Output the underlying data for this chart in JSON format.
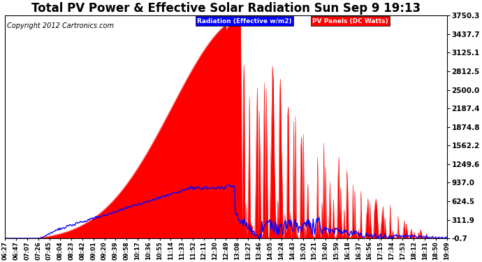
{
  "title": "Total PV Power & Effective Solar Radiation Sun Sep 9 19:13",
  "copyright": "Copyright 2012 Cartronics.com",
  "legend_radiation": "Radiation (Effective w/m2)",
  "legend_pv": "PV Panels (DC Watts)",
  "yticks": [
    3750.3,
    3437.7,
    3125.1,
    2812.5,
    2500.0,
    2187.4,
    1874.8,
    1562.2,
    1249.6,
    937.0,
    624.5,
    311.9,
    -0.7
  ],
  "ylim": [
    -0.7,
    3750.3
  ],
  "bg_color": "#ffffff",
  "plot_bg_color": "#ffffff",
  "red_color": "#ff0000",
  "blue_color": "#0000ff",
  "title_fontsize": 12,
  "copyright_fontsize": 7,
  "xtick_fontsize": 6,
  "ytick_fontsize": 7.5,
  "time_labels": [
    "06:27",
    "06:47",
    "07:07",
    "07:26",
    "07:45",
    "08:04",
    "08:23",
    "08:42",
    "09:01",
    "09:20",
    "09:39",
    "09:58",
    "10:17",
    "10:36",
    "10:55",
    "11:14",
    "11:33",
    "11:52",
    "12:11",
    "12:30",
    "12:49",
    "13:08",
    "13:27",
    "13:46",
    "14:05",
    "14:24",
    "14:43",
    "15:02",
    "15:21",
    "15:40",
    "15:59",
    "16:18",
    "16:37",
    "16:56",
    "17:15",
    "17:34",
    "17:53",
    "18:12",
    "18:31",
    "18:50",
    "19:09"
  ]
}
